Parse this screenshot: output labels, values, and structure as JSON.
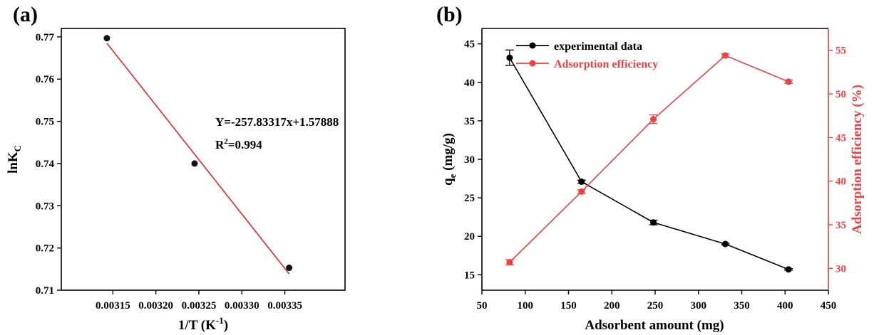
{
  "chart_data": [
    {
      "panel_label": "(a)",
      "type": "scatter",
      "xlabel": "1/T (K",
      "xlabel_sup": "-1",
      "xlabel_close": ")",
      "ylabel": "lnK",
      "ylabel_sub": "C",
      "xlim": [
        0.00309,
        0.00342
      ],
      "ylim": [
        0.71,
        0.772
      ],
      "xticks": [
        0.00315,
        0.0032,
        0.00325,
        0.0033,
        0.00335
      ],
      "xtick_labels": [
        "0.00315",
        "0.00320",
        "0.00325",
        "0.00330",
        "0.00335"
      ],
      "yticks": [
        0.71,
        0.72,
        0.73,
        0.74,
        0.75,
        0.76,
        0.77
      ],
      "ytick_labels": [
        "0.71",
        "0.72",
        "0.73",
        "0.74",
        "0.75",
        "0.76",
        "0.77"
      ],
      "points": [
        {
          "x": 0.003143,
          "y": 0.7697
        },
        {
          "x": 0.003245,
          "y": 0.74
        },
        {
          "x": 0.003355,
          "y": 0.7153
        }
      ],
      "fit": {
        "slope": -257.83317,
        "intercept": 1.57888,
        "x_range": [
          0.003143,
          0.003355
        ],
        "color": "#e8262a"
      },
      "annotation_eq": "Y=-257.83317x+1.57888",
      "annotation_r2_prefix": "R",
      "annotation_r2_sup": "2",
      "annotation_r2_value": "=0.994"
    },
    {
      "panel_label": "(b)",
      "type": "line",
      "xlabel": "Adsorbent amount (mg)",
      "ylabel": "q",
      "ylabel_sub": "e",
      "ylabel_rest": " (mg/g)",
      "y2label": "Adsorption efficiency (%)",
      "xlim": [
        50,
        450
      ],
      "ylim": [
        13,
        47
      ],
      "y2lim": [
        27.5,
        57.5
      ],
      "xticks": [
        50,
        100,
        150,
        200,
        250,
        300,
        350,
        400,
        450
      ],
      "xtick_labels": [
        "50",
        "100",
        "150",
        "200",
        "250",
        "300",
        "350",
        "400",
        "450"
      ],
      "yticks": [
        15,
        20,
        25,
        30,
        35,
        40,
        45
      ],
      "ytick_labels": [
        "15",
        "20",
        "25",
        "30",
        "35",
        "40",
        "45"
      ],
      "y2ticks": [
        30,
        35,
        40,
        45,
        50,
        55
      ],
      "y2tick_labels": [
        "30",
        "35",
        "40",
        "45",
        "50",
        "55"
      ],
      "legend_position": "top-left",
      "series": [
        {
          "name": "experimental data",
          "axis": "left",
          "color": "#000000",
          "x": [
            82,
            165,
            248,
            331,
            404
          ],
          "values": [
            43.2,
            27.1,
            21.8,
            19.0,
            15.7
          ],
          "errors": [
            1.0,
            0.2,
            0.3,
            0.1,
            0.1
          ]
        },
        {
          "name": "Adsorption efficiency",
          "axis": "right",
          "color": "#f04040",
          "x": [
            82,
            165,
            248,
            331,
            404
          ],
          "values": [
            30.7,
            38.8,
            47.1,
            54.4,
            51.4
          ],
          "errors": [
            0.3,
            0.2,
            0.5,
            0.2,
            0.2
          ]
        }
      ]
    }
  ]
}
